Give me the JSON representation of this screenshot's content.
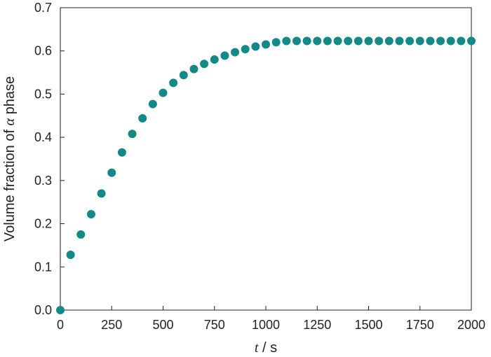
{
  "chart_data": {
    "type": "scatter",
    "title": "",
    "xlabel": "t / s",
    "xlabel_var": "t",
    "xlabel_unit": " / s",
    "ylabel": "Volume fraction of α phase",
    "ylabel_prefix": "Volume fraction of ",
    "ylabel_symbol": "α",
    "ylabel_suffix": " phase",
    "xlim": [
      0,
      2000
    ],
    "ylim": [
      0.0,
      0.7
    ],
    "xticks": [
      0,
      250,
      500,
      750,
      1000,
      1250,
      1500,
      1750,
      2000
    ],
    "xtick_labels": [
      "0",
      "250",
      "500",
      "750",
      "1000",
      "1250",
      "1500",
      "1750",
      "2000"
    ],
    "yticks": [
      0.0,
      0.1,
      0.2,
      0.3,
      0.4,
      0.5,
      0.6,
      0.7
    ],
    "ytick_labels": [
      "0.0",
      "0.1",
      "0.2",
      "0.3",
      "0.4",
      "0.5",
      "0.6",
      "0.7"
    ],
    "grid": false,
    "legend": "none",
    "marker_color": "#138a87",
    "series": [
      {
        "x": [
          0,
          50,
          100,
          150,
          200,
          250,
          300,
          350,
          400,
          450,
          500,
          550,
          600,
          650,
          700,
          750,
          800,
          850,
          900,
          950,
          1000,
          1050,
          1100,
          1150,
          1200,
          1250,
          1300,
          1350,
          1400,
          1450,
          1500,
          1550,
          1600,
          1650,
          1700,
          1750,
          1800,
          1850,
          1900,
          1950,
          2000
        ],
        "y": [
          0.0,
          0.128,
          0.175,
          0.222,
          0.27,
          0.318,
          0.365,
          0.408,
          0.444,
          0.477,
          0.503,
          0.526,
          0.544,
          0.558,
          0.57,
          0.58,
          0.589,
          0.597,
          0.604,
          0.61,
          0.615,
          0.62,
          0.623,
          0.623,
          0.623,
          0.623,
          0.623,
          0.623,
          0.623,
          0.623,
          0.623,
          0.623,
          0.623,
          0.623,
          0.623,
          0.623,
          0.623,
          0.623,
          0.623,
          0.623,
          0.623
        ]
      }
    ]
  }
}
